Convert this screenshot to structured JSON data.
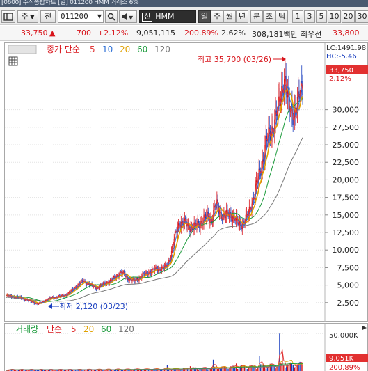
{
  "window": {
    "title": "[0600] 주식종합차트 [일] 011200 HMM 거래소 6%"
  },
  "toolbar": {
    "menu_icon": "chart-menu-icon",
    "market_label": "주",
    "mode_label": "전",
    "code_value": "011200",
    "search_icon": "search-icon",
    "sound_icon": "speaker-icon",
    "stock_name_prefix": "신",
    "stock_name": "HMM",
    "periods": [
      "일",
      "주",
      "월",
      "년",
      "분",
      "초",
      "틱"
    ],
    "selected_period": "일",
    "intervals": [
      "1",
      "3",
      "5",
      "10",
      "20",
      "30"
    ]
  },
  "quote": {
    "price": "33,750",
    "direction": "▲",
    "change": "700",
    "change_pct": "+2.12%",
    "volume": "9,051,115",
    "volume_ratio": "200.89%",
    "turnover": "2.62%",
    "amount": "308,181백만",
    "pref_label": "최우선",
    "pref_price": "33,800"
  },
  "price_chart": {
    "legend_main": "종가 단순",
    "legend_periods": [
      "5",
      "10",
      "20",
      "60",
      "120"
    ],
    "legend_colors": [
      "#e23a3a",
      "#2c6fd6",
      "#e0a000",
      "#1a9a3a",
      "#777777"
    ],
    "lc_label": "LC:1491.98",
    "hc_label": "HC:-5.46",
    "price_badge": "33,750",
    "pct_label": "2.12%",
    "high_annotation": "최고 35,700 (03/26)",
    "low_annotation": "최저 2,120 (03/23)",
    "y_ticks": [
      "30,000",
      "27,500",
      "25,000",
      "22,500",
      "20,000",
      "17,500",
      "15,000",
      "12,500",
      "10,000",
      "7,500",
      "5,000",
      "2,500"
    ]
  },
  "volume_chart": {
    "legend_main": "거래량",
    "legend_simple": "단순",
    "legend_periods": [
      "5",
      "20",
      "60",
      "120"
    ],
    "legend_colors": [
      "#e23a3a",
      "#e0a000",
      "#1a9a3a",
      "#777777"
    ],
    "y_tick": "50,000K",
    "badge_volume": "9,051K",
    "badge_pct": "200.89%"
  },
  "chart_data": [
    {
      "type": "candlestick",
      "title": "",
      "ylabel": "",
      "ylim": [
        0,
        38000
      ],
      "close_series": [
        3500,
        3400,
        3300,
        3200,
        3000,
        2800,
        2500,
        2300,
        2600,
        3000,
        3200,
        3300,
        3400,
        3600,
        4000,
        4600,
        5200,
        5600,
        5200,
        4800,
        4600,
        5000,
        5400,
        5600,
        6200,
        6800,
        6400,
        5800,
        5600,
        6000,
        6400,
        6800,
        7000,
        7400,
        7300,
        7600,
        9000,
        12000,
        14000,
        13800,
        13400,
        13200,
        13600,
        14200,
        14800,
        14400,
        16600,
        15200,
        14800,
        15200,
        14600,
        13600,
        13900,
        14800,
        17200,
        19500,
        22000,
        25500,
        26500,
        29000,
        31000,
        35000,
        30000,
        29500,
        31000,
        33750
      ],
      "moving_averages": [
        "5",
        "10",
        "20",
        "60",
        "120"
      ],
      "annotations": [
        {
          "label": "최고 35,700 (03/26)",
          "value": 35700
        },
        {
          "label": "최저 2,120 (03/23)",
          "value": 2120
        }
      ]
    },
    {
      "type": "bar",
      "title": "거래량",
      "ylabel": "",
      "ylim": [
        0,
        60000
      ],
      "last_value": 9051,
      "last_ratio_pct": 200.89
    }
  ]
}
